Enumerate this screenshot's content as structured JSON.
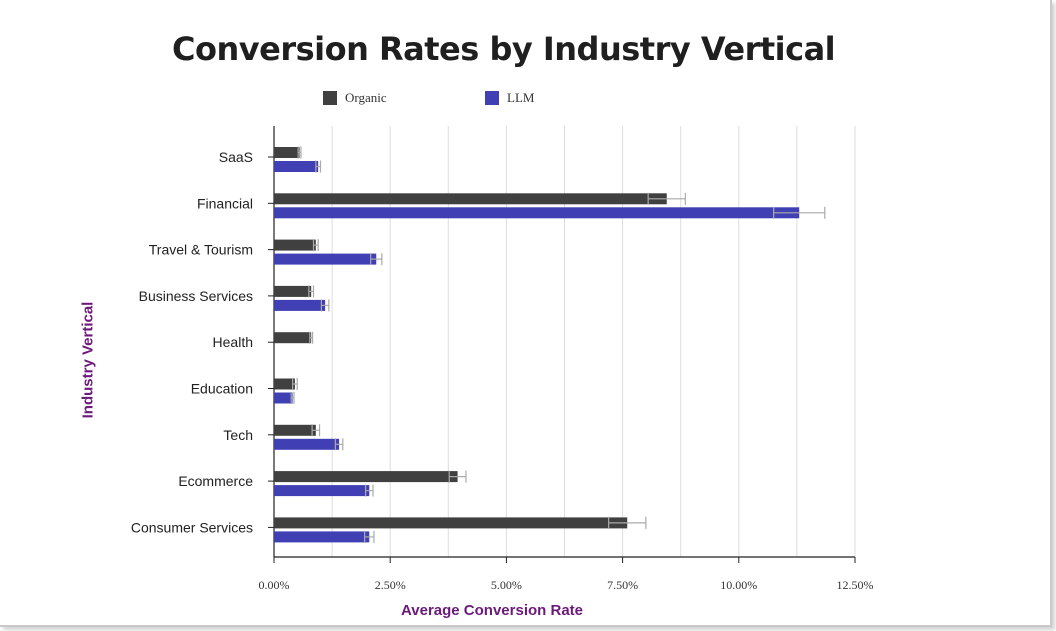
{
  "chart_data": {
    "type": "bar",
    "orientation": "horizontal",
    "title": "Conversion Rates by Industry Vertical",
    "xlabel": "Average Conversion Rate",
    "ylabel": "Industry Vertical",
    "categories": [
      "SaaS",
      "Financial",
      "Travel & Tourism",
      "Business Services",
      "Health",
      "Education",
      "Tech",
      "Ecommerce",
      "Consumer Services"
    ],
    "series": [
      {
        "name": "Organic",
        "color": "#404040",
        "values": [
          0.55,
          8.45,
          0.9,
          0.8,
          0.8,
          0.45,
          0.9,
          3.95,
          7.6
        ],
        "error": [
          0.03,
          0.4,
          0.05,
          0.05,
          0.03,
          0.05,
          0.08,
          0.18,
          0.4
        ]
      },
      {
        "name": "LLM",
        "color": "#4040b4",
        "values": [
          0.95,
          11.3,
          2.2,
          1.1,
          0.0,
          0.4,
          1.4,
          2.05,
          2.05
        ],
        "error": [
          0.05,
          0.55,
          0.12,
          0.08,
          0.0,
          0.03,
          0.08,
          0.08,
          0.1
        ]
      }
    ],
    "xlim": [
      0,
      12.5
    ],
    "xticks": [
      0,
      2.5,
      5,
      7.5,
      10,
      12.5
    ],
    "xtick_labels": [
      "0.00%",
      "2.50%",
      "5.00%",
      "7.50%",
      "10.00%",
      "12.50%"
    ],
    "grid": true,
    "legend": "top"
  },
  "colors": {
    "title": "#1f1f1f",
    "axis_label": "#6b1a7a",
    "grid": "#dddddd",
    "error_bar": "#aaaaaa"
  }
}
